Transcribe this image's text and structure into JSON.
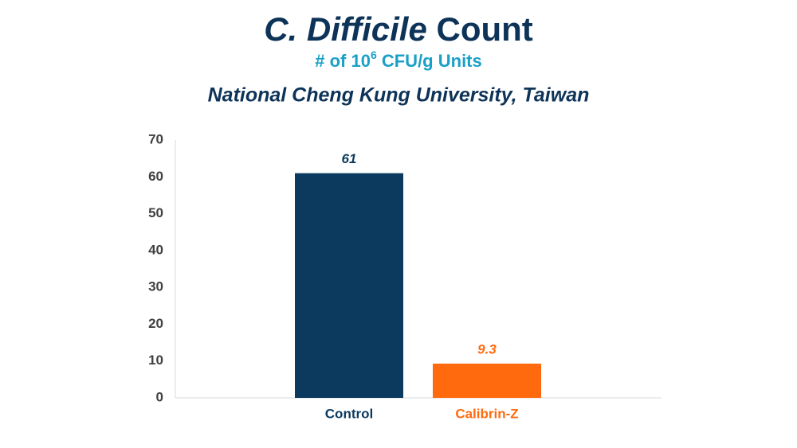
{
  "chart_data": {
    "type": "bar",
    "title": [
      "C. Difficile",
      "Count"
    ],
    "subtitle": [
      "# of 10",
      "6",
      "CFU/g Units"
    ],
    "caption": "National Cheng Kung University, Taiwan",
    "categories": [
      "Control",
      "Calibrin-Z"
    ],
    "values": [
      61,
      9.3
    ],
    "colors": [
      "#0b3a5e",
      "#ff6a0e"
    ],
    "ylim": [
      0,
      70
    ],
    "yticks": [
      0,
      10,
      20,
      30,
      40,
      50,
      60,
      70
    ],
    "grid": false
  }
}
